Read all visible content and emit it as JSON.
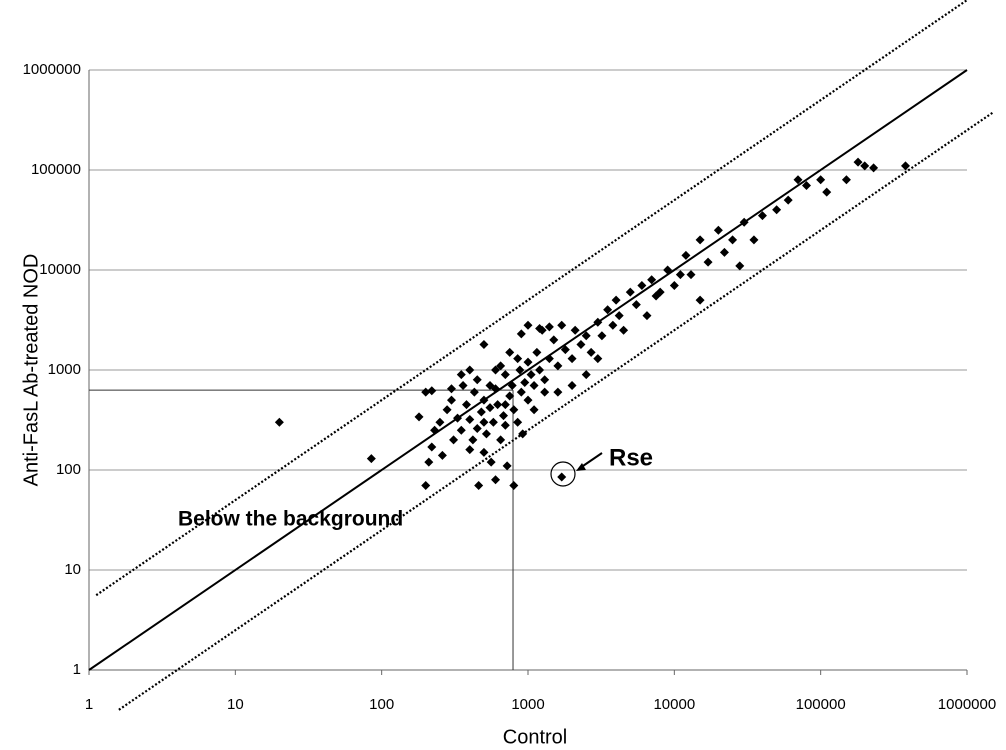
{
  "chart_data": {
    "type": "scatter",
    "x_label": "Control",
    "y_label": "Anti-FasL Ab-treated NOD",
    "log_x": true,
    "log_y": true,
    "grid": true,
    "color": "#000000",
    "xlim": [
      1,
      1000000
    ],
    "ylim": [
      1,
      1000000
    ],
    "xticks": [
      1,
      10,
      100,
      1000,
      10000,
      100000,
      1000000
    ],
    "yticks": [
      1,
      10,
      100,
      1000,
      10000,
      100000,
      1000000
    ],
    "reference_lines": [
      {
        "ratio": 1,
        "style": "solid"
      },
      {
        "ratio": 5,
        "style": "dotted"
      },
      {
        "ratio": 0.25,
        "style": "dotted"
      }
    ],
    "background": {
      "x": 790,
      "y": 630
    },
    "annotations": [
      "Below the background",
      "Rse"
    ],
    "x": [
      20,
      85,
      1700,
      200,
      210,
      220,
      230,
      180,
      200,
      220,
      250,
      260,
      280,
      300,
      310,
      330,
      350,
      360,
      380,
      400,
      400,
      420,
      430,
      450,
      460,
      480,
      500,
      500,
      520,
      550,
      560,
      580,
      600,
      600,
      620,
      650,
      680,
      700,
      700,
      720,
      750,
      780,
      800,
      800,
      850,
      880,
      900,
      920,
      950,
      1000,
      1000,
      1050,
      1100,
      1150,
      1200,
      1250,
      1300,
      1400,
      1500,
      1600,
      1700,
      1800,
      2000,
      2100,
      2300,
      2500,
      2700,
      3000,
      3200,
      3500,
      3800,
      4000,
      4200,
      4500,
      5000,
      5500,
      6000,
      6500,
      7000,
      7500,
      8000,
      9000,
      10000,
      11000,
      12000,
      13000,
      15000,
      15000,
      17000,
      20000,
      22000,
      25000,
      28000,
      30000,
      35000,
      40000,
      50000,
      60000,
      70000,
      80000,
      100000,
      110000,
      150000,
      180000,
      200000,
      230000,
      380000,
      450,
      550,
      650,
      750,
      850,
      1000,
      1200,
      1400,
      900,
      600,
      350,
      300,
      500,
      700,
      1100,
      1300,
      2000,
      1600,
      2500,
      3000,
      400,
      500
    ],
    "values": [
      300,
      130,
      85,
      70,
      120,
      170,
      250,
      340,
      600,
      620,
      300,
      140,
      400,
      500,
      200,
      330,
      250,
      700,
      450,
      160,
      320,
      200,
      600,
      260,
      70,
      380,
      500,
      150,
      230,
      420,
      120,
      300,
      650,
      80,
      450,
      200,
      350,
      900,
      280,
      110,
      550,
      700,
      400,
      70,
      300,
      1000,
      600,
      230,
      750,
      500,
      1200,
      900,
      700,
      1500,
      1000,
      2500,
      800,
      1300,
      2000,
      1100,
      2800,
      1600,
      1300,
      2500,
      1800,
      2200,
      1500,
      3000,
      2200,
      4000,
      2800,
      5000,
      3500,
      2500,
      6000,
      4500,
      7000,
      3500,
      8000,
      5500,
      6000,
      10000,
      7000,
      9000,
      14000,
      9000,
      20000,
      5000,
      12000,
      25000,
      15000,
      20000,
      11000,
      30000,
      20000,
      35000,
      40000,
      50000,
      80000,
      70000,
      80000,
      60000,
      80000,
      120000,
      110000,
      105000,
      110000,
      800,
      700,
      1100,
      1500,
      1300,
      2800,
      2600,
      2700,
      2300,
      1000,
      900,
      650,
      300,
      450,
      400,
      600,
      700,
      600,
      900,
      1300,
      1000,
      1800
    ]
  }
}
